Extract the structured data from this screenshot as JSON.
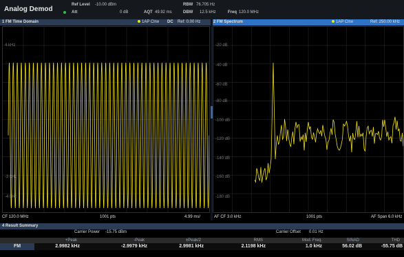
{
  "header": {
    "title": "Analog Demod",
    "ref_level_label": "Ref Level",
    "ref_level_value": "-10.00 dBm",
    "att_label": "Att",
    "att_value": "0 dB",
    "aqt_label": "AQT",
    "aqt_value": "49.92 ms",
    "rbw_label": "RBW",
    "rbw_value": "76.705 Hz",
    "dbw_label": "DBW",
    "dbw_value": "12.5 kHz",
    "freq_label": "Freq",
    "freq_value": "120.0 MHz",
    "att_indicator_color": "#2fbf4a"
  },
  "window1": {
    "title": "1 FM Time Domain",
    "trace_info": "1AP Clrw",
    "coupling": "DC",
    "ref_info": "Ref: 0.00 Hz",
    "y_labels": [
      "4 kHz",
      "",
      "",
      "",
      "",
      "-3 kHz",
      "-4 kHz"
    ],
    "footer_left": "CF 120.0 MHz",
    "footer_mid": "1001 pts",
    "footer_right": "4.99 ms/"
  },
  "window2": {
    "title": "2 FM Spectrum",
    "trace_info": "1AP Clrw",
    "ref_info": "Ref: 250.00 kHz",
    "y_labels": [
      "-20 dB",
      "-40 dB",
      "-60 dB",
      "-80 dB",
      "-100 dB",
      "-120 dB",
      "-140 dB",
      "-160 dB",
      "-180 dB"
    ],
    "footer_left": "AF CF 3.0 kHz",
    "footer_mid": "1001 pts",
    "footer_right": "AF Span 6.0 kHz"
  },
  "result_summary": {
    "title": "4 Result Summary",
    "carrier_power_label": "Carrier Power",
    "carrier_power_value": "-15.75 dBm",
    "carrier_offset_label": "Carrier Offset",
    "carrier_offset_value": "0.01 Hz",
    "row_label": "FM",
    "columns": [
      "+Peak",
      "-Peak",
      "±Peak/2",
      "RMS",
      "Mod. Freq.",
      "SINAD",
      "THD"
    ],
    "values": [
      "2.9982 kHz",
      "-2.9979 kHz",
      "2.9981 kHz",
      "2.1198 kHz",
      "1.0 kHz",
      "56.02 dB",
      "-55.75 dB"
    ]
  },
  "colors": {
    "trace": "#f2e21a",
    "window_active": "#2d74c6",
    "window_inactive": "#2b3d55"
  }
}
